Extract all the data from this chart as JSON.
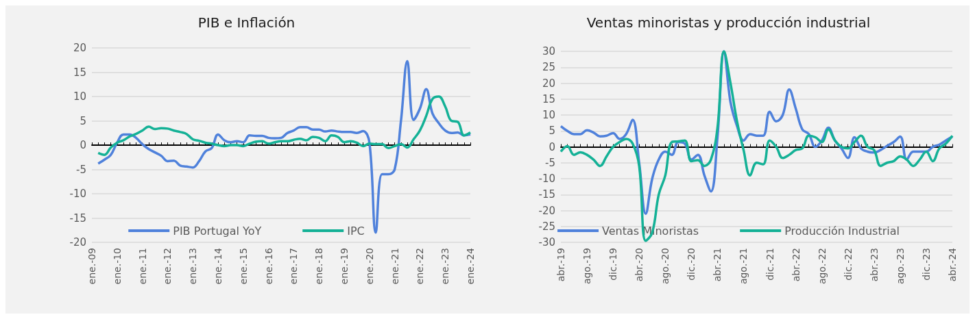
{
  "chart_data": [
    {
      "type": "line",
      "title": "PIB e Inflación",
      "categories": [
        "ene.-09",
        null,
        null,
        null,
        "ene.-10",
        null,
        null,
        null,
        "ene.-11",
        null,
        null,
        null,
        "ene.-12",
        null,
        null,
        null,
        "ene.-13",
        null,
        null,
        null,
        "ene.-14",
        null,
        null,
        null,
        "ene.-15",
        null,
        null,
        null,
        "ene.-16",
        null,
        null,
        null,
        "ene.-17",
        null,
        null,
        null,
        "ene.-18",
        null,
        null,
        null,
        "ene.-19",
        null,
        null,
        null,
        "ene.-20",
        null,
        null,
        null,
        "ene.-21",
        null,
        null,
        null,
        "ene.-22",
        null,
        null,
        null,
        "ene.-23",
        null,
        null,
        null,
        "ene.-24"
      ],
      "series": [
        {
          "name": "PIB Portugal YoY",
          "color": "#4f81db",
          "values": [
            null,
            -3.8,
            -3,
            -2,
            0.5,
            2.2,
            2.2,
            1.5,
            0.2,
            -0.8,
            -1.5,
            -2.2,
            -3.3,
            -3.2,
            -4.2,
            -4.4,
            -4.6,
            -3.3,
            -1.3,
            -0.6,
            2.2,
            1,
            0.6,
            0.8,
            0.6,
            2,
            1.9,
            1.9,
            1.5,
            1.4,
            1.5,
            2.5,
            3,
            3.7,
            3.7,
            3.2,
            3.2,
            2.8,
            3,
            2.8,
            2.7,
            2.7,
            2.5,
            2.9,
            0.5,
            -18,
            -6,
            -6,
            -5,
            5,
            17.3,
            5.2,
            7.5,
            11.5,
            6.5,
            4.5,
            3,
            2.5,
            2.6,
            2,
            2.2
          ]
        },
        {
          "name": "IPC",
          "color": "#14b196",
          "values": [
            null,
            -1.6,
            -2,
            -0.5,
            0.5,
            1,
            1.8,
            2.3,
            3,
            3.8,
            3.3,
            3.5,
            3.4,
            3,
            2.7,
            2.3,
            1.2,
            0.9,
            0.5,
            0.3,
            0,
            -0.2,
            0,
            0,
            -0.2,
            0.3,
            0.7,
            0.8,
            0.3,
            0.6,
            0.8,
            0.8,
            1.1,
            1.3,
            1,
            1.7,
            1.5,
            0.8,
            2,
            1.7,
            0.6,
            0.8,
            0.5,
            -0.2,
            0.3,
            0.2,
            0.2,
            -0.6,
            -0.2,
            0.2,
            -0.5,
            1.2,
            3,
            6,
            9.5,
            10,
            8,
            5,
            4.8,
            2,
            2.6
          ]
        }
      ],
      "ylim": [
        -20,
        20
      ],
      "yticks": [
        -20,
        -15,
        -10,
        -5,
        0,
        5,
        10,
        15,
        20
      ],
      "grid": "y",
      "legend": "bottom"
    },
    {
      "type": "line",
      "title": "Ventas minoristas y producción industrial",
      "categories": [
        "abr.-19",
        null,
        null,
        null,
        "ago.-19",
        null,
        null,
        null,
        "dic.-19",
        null,
        null,
        null,
        "abr.-20",
        null,
        null,
        null,
        "ago.-20",
        null,
        null,
        null,
        "dic.-20",
        null,
        null,
        null,
        "abr.-21",
        null,
        null,
        null,
        "ago.-21",
        null,
        null,
        null,
        "dic.-21",
        null,
        null,
        null,
        "abr.-22",
        null,
        null,
        null,
        "ago.-22",
        null,
        null,
        null,
        "dic.-22",
        null,
        null,
        null,
        "abr.-23",
        null,
        null,
        null,
        "ago.-23",
        null,
        null,
        null,
        "dic.-23",
        null,
        null,
        null,
        "abr.-24"
      ],
      "series": [
        {
          "name": "Ventas Minoristas",
          "color": "#4f81db",
          "values": [
            6.5,
            5,
            4,
            4,
            5.2,
            4.5,
            3.3,
            3.5,
            4.3,
            2.5,
            4,
            8.5,
            -5,
            -21,
            -10,
            -4,
            -1.5,
            -2.5,
            1.5,
            1,
            -4,
            -2.5,
            -9,
            -14,
            3,
            30,
            14,
            6.5,
            2,
            4,
            3.5,
            3.5,
            11,
            8,
            10,
            18,
            12,
            5.5,
            4,
            0,
            2,
            6,
            2,
            -0.5,
            -3.5,
            3,
            -0.5,
            -1.5,
            -1.8,
            -1,
            0.3,
            1.5,
            3.2,
            -4,
            -1.5,
            -1.5,
            -1.5,
            0,
            0.7,
            2,
            3.2
          ]
        },
        {
          "name": "Producción Industrial",
          "color": "#14b196",
          "values": [
            -1.5,
            0.2,
            -2.5,
            -1.7,
            -2.5,
            -4,
            -6,
            -3,
            0,
            1.5,
            2.5,
            1,
            -6,
            -29.5,
            -27,
            -15,
            -9,
            1.5,
            1.7,
            2,
            -4.5,
            -4.2,
            -6,
            -4,
            6,
            30,
            20,
            8,
            -1,
            -9,
            -5,
            -5.5,
            2,
            0,
            -3.5,
            -2.5,
            -1,
            -0.5,
            3.5,
            3,
            1.5,
            5.5,
            2,
            0,
            -0.5,
            1.5,
            3.5,
            0,
            -1,
            -6,
            -5,
            -4.5,
            -3,
            -4,
            -6,
            -4,
            -1.5,
            -4.5,
            -0.5,
            1,
            3.5
          ]
        }
      ],
      "ylim": [
        -30,
        30
      ],
      "yticks": [
        -30,
        -25,
        -20,
        -15,
        -10,
        -5,
        0,
        5,
        10,
        15,
        20,
        25,
        30
      ],
      "grid": "y",
      "legend": "bottom"
    }
  ]
}
